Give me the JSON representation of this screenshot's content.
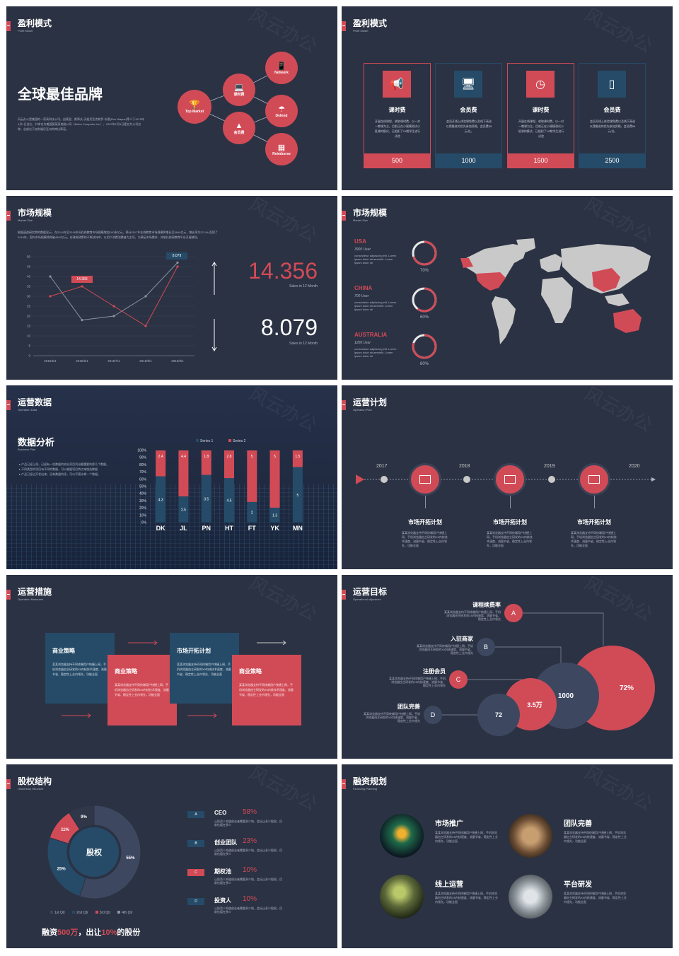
{
  "colors": {
    "bg": "#2b3243",
    "accent": "#d14b57",
    "navy": "#254b68"
  },
  "watermark": "风云办公",
  "s1": {
    "title": "盈利模式",
    "sub": "Profit Model",
    "headline": "全球最佳品牌",
    "body": "风云办公是美国的一家高科技公司。由莫里、斯蒂夫·沃兹尼亚克和罗·韦恩(Ron Wayne)等人于1976年4月1日创立，并命名为美国莫某某电脑公司（Bolbo Computer Inc.），2007年1月9日更名为公司名称，总部位于加利福尼亚州的库比蒂诺。",
    "nodes": [
      {
        "label": "Top Market",
        "icon": "trophy-icon"
      },
      {
        "label": "课时费",
        "icon": "laptop-icon"
      },
      {
        "label": "Network",
        "icon": "devices-icon"
      },
      {
        "label": "Defend",
        "icon": "umbrella-icon"
      },
      {
        "label": "会员费",
        "icon": "cone-icon"
      },
      {
        "label": "Reimburse",
        "icon": "boxes-icon"
      }
    ]
  },
  "s2": {
    "title": "盈利模式",
    "sub": "Profit Model",
    "cards": [
      {
        "title": "课时费",
        "text": "开展在线课程，收取课时费，以一对一教课为主。目前正在小规模测试小班课的模式，已组织了10期学生进行试验",
        "value": "500",
        "color": "red",
        "icon": "megaphone-icon"
      },
      {
        "title": "会员费",
        "text": "会员开线上体验课免费以及线下高谈以我推进的优先参加资格，会员费58元/位。",
        "value": "1000",
        "color": "navy",
        "icon": "monitor-icon"
      },
      {
        "title": "课时费",
        "text": "开展在线课程，收取课时费，以一对一教课为主。目前正在小规模测试小班课的模式，已组织了10期学生进行试验",
        "value": "1500",
        "color": "red",
        "icon": "gauge-icon"
      },
      {
        "title": "会员费",
        "text": "会员开线上体验课免费以及线下高谈以我推进的优先参加资格，会员费58元/位。",
        "value": "2500",
        "color": "navy",
        "icon": "door-icon"
      }
    ]
  },
  "s3": {
    "title": "市场规模",
    "sub": "Market Size",
    "body": "根据速途研究院的数据显示，在2014年至2016年间在线教育市场规模增加100多亿元，预计2017年在线教育市场规模将增长至3644亿元，增长率为22.1%;而到了2018年，国内市场规模将突破4500亿元。在政府政策的不断扶持中，以用户消费消费者为主导，为满足市场需求，并依托线观教育平台开展辅导。",
    "big1": "14.356",
    "big1_sub": "Sales in 12 Month",
    "big2": "8.079",
    "big2_sub": "Sales in 12 Month",
    "label1": "14.356",
    "label2": "8.079"
  },
  "chart_data": [
    {
      "type": "line",
      "x": [
        "2015/5/1",
        "2015/6/1",
        "2015/7/1",
        "2015/8/1",
        "2015/9/1"
      ],
      "ylim": [
        0,
        50
      ],
      "yticks": [
        "0",
        "5",
        "10",
        "15",
        "20",
        "25",
        "30",
        "35",
        "40",
        "45",
        "50"
      ],
      "series": [
        {
          "values": [
            30,
            35,
            25,
            15,
            45
          ],
          "color": "#d14b57"
        },
        {
          "values": [
            40,
            18,
            20,
            30,
            47
          ],
          "color": "#8c93a3"
        }
      ]
    },
    {
      "type": "bar",
      "categories": [
        "DK",
        "JL",
        "PN",
        "HT",
        "FT",
        "YK",
        "MN"
      ],
      "series": [
        {
          "name": "Series 1",
          "values": [
            4.3,
            2.5,
            3.5,
            4.5,
            2,
            1.3,
            5
          ]
        },
        {
          "name": "Series 2",
          "values": [
            2.4,
            4.4,
            1.8,
            2.8,
            5,
            5,
            1.5
          ]
        }
      ],
      "yticks": [
        "0%",
        "10%",
        "20%",
        "30%",
        "40%",
        "50%",
        "60%",
        "70%",
        "80%",
        "90%",
        "100%"
      ],
      "ylim": [
        0,
        100
      ]
    },
    {
      "type": "pie",
      "categories": [
        "1st Qtr",
        "2nd Qtr",
        "3rd Qtr",
        "4th Qtr"
      ],
      "values": [
        55,
        25,
        11,
        9
      ],
      "labels": [
        "55%",
        "25%",
        "11%",
        "9%"
      ],
      "colors": [
        "#3d4860",
        "#254b68",
        "#d14b57",
        "#2f3749"
      ]
    }
  ],
  "s4": {
    "title": "市场规模",
    "sub": "Market Size",
    "regions": [
      {
        "name": "USA",
        "users": "3900 User",
        "text": "consectetur adipiscing elit. Lorem ipsum dolor sit ametelit. Lorem ipsum dolor sit",
        "pct": "70%",
        "value": 70
      },
      {
        "name": "CHINA",
        "users": "700 User",
        "text": "consectetur adipiscing elit. Lorem ipsum dolor sit ametelit. Lorem ipsum dolor sit",
        "pct": "60%",
        "value": 60
      },
      {
        "name": "AUSTRALIA",
        "users": "1200 User",
        "text": "consectetur adipiscing elit. Lorem ipsum dolor sit ametelit. Lorem ipsum dolor sit",
        "pct": "80%",
        "value": 80
      }
    ]
  },
  "s5": {
    "title": "运营数据",
    "sub": "Operation Data",
    "heading": "数据分析",
    "heading_sub": "Business Plan",
    "bullets": [
      "产品已经上线，已经有一些数据的较业项目列出最重要的那几个数据。",
      "不同类型的项目有不同的数据，可以根据项目特点来挑选数据",
      "产品已经过开发出来，没有数据的话，可以写预计哪一个数据。"
    ]
  },
  "s6": {
    "title": "运营计划",
    "sub": "Operation Plan",
    "years": [
      "2017",
      "2018",
      "2019",
      "2020"
    ],
    "items": [
      {
        "title": "市场开拓计划",
        "text": "某某浏览器支持不同终端用户快捷上网，手机浏览器由主研发的X5内核技术速度、流量节省、稳定性上业内领先，功能全面"
      },
      {
        "title": "市场开拓计划",
        "text": "某某浏览器支持不同终端用户快捷上网，手机浏览器由主研发的X5内核技术速度、流量节省、稳定性上业内领先，功能全面"
      },
      {
        "title": "市场开拓计划",
        "text": "某某浏览器支持不同终端用户快捷上网，手机浏览器由主研发的X5内核技术速度、流量节省、稳定性上业内领先，功能全面"
      }
    ]
  },
  "s7": {
    "title": "运营措施",
    "sub": "Operation Measures",
    "boxes": [
      {
        "title": "商业策略",
        "text": "某某浏览器支持不同终端用户快捷上网，手机浏览器由主研发的X5内核技术速度、流量节省、稳定性上业内领先，功能全面"
      },
      {
        "title": "商业策略",
        "text": "某某浏览器支持不同终端用户快捷上网，手机浏览器由主研发的X5内核技术速度、流量节省、稳定性上业内领先，功能全面"
      },
      {
        "title": "市场开拓计划",
        "text": "某某浏览器支持不同终端用户快捷上网，手机浏览器由主研发的X5内核技术速度、流量节省、稳定性上业内领先，功能全面"
      },
      {
        "title": "商业策略",
        "text": "某某浏览器支持不同终端用户快捷上网，手机浏览器由主研发的X5内核技术速度、流量节省、稳定性上业内领先，功能全面"
      }
    ]
  },
  "s8": {
    "title": "运营目标",
    "sub": "Operational objectives",
    "items": [
      {
        "letter": "A",
        "title": "课程续费率",
        "text": "某某浏览器支持不同终端用户快捷上网，手机浏览器由主研发的X5内核速度、流量节省、稳定性上业内领先"
      },
      {
        "letter": "B",
        "title": "入驻商家",
        "text": "某某浏览器支持不同终端用户快捷上网，手机浏览器由主研发的X5内核速度、流量节省、稳定性上业内领先"
      },
      {
        "letter": "C",
        "title": "注册会员",
        "text": "某某浏览器支持不同终端用户快捷上网，手机浏览器由主研发的X5内核速度、流量节省、稳定性上业内领先"
      },
      {
        "letter": "D",
        "title": "团队完善",
        "text": "某某浏览器支持不同终端用户快捷上网，手机浏览器由主研发的X5内核速度、流量节省、稳定性上业内领先"
      }
    ],
    "bubbles": [
      "72%",
      "1000",
      "3.5万",
      "72"
    ]
  },
  "s9": {
    "title": "股权结构",
    "sub": "Ownership Structure",
    "center": "股权",
    "rows": [
      {
        "letter": "A",
        "name": "CEO",
        "pct": "58%",
        "text": "让投资人知道创业者需要多少钱，会出让多少股权，目前估值在多少"
      },
      {
        "letter": "B",
        "name": "创业团队",
        "pct": "23%",
        "text": "让投资人知道创业者需要多少钱，会出让多少股权，目前估值在多少"
      },
      {
        "letter": "C",
        "name": "期权池",
        "pct": "10%",
        "text": "让投资人知道创业者需要多少钱，会出让多少股权，目前估值在多少"
      },
      {
        "letter": "D",
        "name": "投资人",
        "pct": "10%",
        "text": "让投资人知道创业者需要多少钱，会出让多少股权，目前估值在多少"
      }
    ],
    "footer_a": "融资",
    "footer_b": "500万",
    "footer_c": "，出让",
    "footer_d": "10%",
    "footer_e": "的股份"
  },
  "s10": {
    "title": "融资规划",
    "sub": "Financing Planning",
    "items": [
      {
        "title": "市场推广",
        "text": "某某浏览器支持不同终端用户快捷上网，手机浏览器由主研发的X5内核速度、流量节省、稳定性上业内领先，功能全面"
      },
      {
        "title": "团队完善",
        "text": "某某浏览器支持不同终端用户快捷上网，手机浏览器由主研发的X5内核速度、流量节省、稳定性上业内领先，功能全面"
      },
      {
        "title": "线上运营",
        "text": "某某浏览器支持不同终端用户快捷上网，手机浏览器由主研发的X5内核速度、流量节省、稳定性上业内领先，功能全面"
      },
      {
        "title": "平台研发",
        "text": "某某浏览器支持不同终端用户快捷上网，手机浏览器由主研发的X5内核速度、流量节省、稳定性上业内领先，功能全面"
      }
    ]
  }
}
